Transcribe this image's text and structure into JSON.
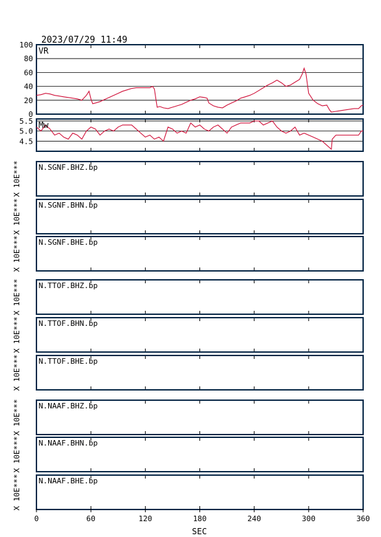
{
  "header": {
    "timestamp": "2023/07/29  11:49"
  },
  "colors": {
    "frame": "#0c2b4a",
    "trace": "#d0143c",
    "grid": "#000000"
  },
  "chart_data": [
    {
      "type": "line",
      "label": "VR",
      "ylim": [
        0,
        100
      ],
      "yticks": [
        0,
        20,
        40,
        60,
        80,
        100
      ],
      "grid": true,
      "x": [
        0,
        5,
        10,
        15,
        20,
        25,
        30,
        35,
        40,
        45,
        50,
        55,
        58,
        60,
        62,
        65,
        70,
        75,
        80,
        85,
        90,
        95,
        100,
        105,
        110,
        115,
        120,
        125,
        128,
        130,
        133,
        136,
        140,
        145,
        150,
        155,
        160,
        165,
        170,
        175,
        180,
        185,
        188,
        190,
        195,
        200,
        205,
        210,
        215,
        220,
        225,
        230,
        235,
        240,
        245,
        250,
        255,
        260,
        265,
        270,
        275,
        280,
        285,
        290,
        293,
        295,
        297,
        300,
        305,
        310,
        315,
        320,
        323,
        325,
        330,
        335,
        340,
        345,
        350,
        355,
        358,
        360
      ],
      "values": [
        27,
        28,
        30,
        29,
        27,
        26,
        25,
        24,
        23,
        22,
        20,
        27,
        33,
        22,
        15,
        16,
        18,
        21,
        24,
        27,
        30,
        33,
        35,
        37,
        38,
        38,
        38,
        38,
        40,
        36,
        10,
        11,
        9,
        8,
        10,
        12,
        14,
        17,
        20,
        22,
        25,
        24,
        23,
        16,
        12,
        10,
        9,
        13,
        16,
        19,
        23,
        25,
        27,
        30,
        34,
        38,
        42,
        45,
        49,
        45,
        40,
        42,
        46,
        50,
        58,
        66,
        58,
        30,
        20,
        15,
        12,
        13,
        6,
        3,
        4,
        5,
        6,
        7,
        8,
        8,
        12,
        13
      ]
    },
    {
      "type": "line",
      "label": "Mw",
      "ylim": [
        4.0,
        5.6
      ],
      "yticks": [
        4.5,
        5.0,
        5.5
      ],
      "grid": true,
      "x": [
        0,
        5,
        10,
        15,
        20,
        25,
        30,
        35,
        40,
        45,
        50,
        55,
        60,
        65,
        70,
        75,
        80,
        85,
        90,
        95,
        100,
        105,
        110,
        115,
        120,
        125,
        130,
        135,
        140,
        145,
        150,
        155,
        160,
        165,
        170,
        175,
        180,
        185,
        190,
        195,
        200,
        205,
        210,
        215,
        220,
        225,
        230,
        235,
        240,
        245,
        250,
        255,
        260,
        265,
        270,
        275,
        280,
        285,
        290,
        295,
        300,
        305,
        310,
        315,
        320,
        325,
        326,
        330,
        335,
        340,
        345,
        350,
        355,
        358,
        360
      ],
      "values": [
        5.2,
        5.0,
        5.3,
        5.1,
        4.8,
        4.9,
        4.7,
        4.6,
        4.9,
        4.8,
        4.6,
        5.0,
        5.2,
        5.1,
        4.8,
        5.0,
        5.1,
        5.0,
        5.2,
        5.3,
        5.3,
        5.3,
        5.1,
        4.9,
        4.7,
        4.8,
        4.6,
        4.7,
        4.5,
        5.2,
        5.1,
        4.9,
        5.0,
        4.9,
        5.4,
        5.2,
        5.3,
        5.1,
        5.0,
        5.2,
        5.3,
        5.1,
        4.9,
        5.2,
        5.3,
        5.4,
        5.4,
        5.4,
        5.5,
        5.5,
        5.3,
        5.4,
        5.5,
        5.2,
        5.0,
        4.9,
        5.0,
        5.2,
        4.8,
        4.9,
        4.8,
        4.7,
        4.6,
        4.5,
        4.3,
        4.1,
        4.6,
        4.8,
        4.8,
        4.8,
        4.8,
        4.8,
        4.8,
        5.0,
        5.0
      ]
    }
  ],
  "station_panels": [
    {
      "label": "N.SGNF.BHZ.bp",
      "ylabel": "X 10E***"
    },
    {
      "label": "N.SGNF.BHN.bp",
      "ylabel": "X 10E***"
    },
    {
      "label": "N.SGNF.BHE.bp",
      "ylabel": "X 10E***"
    },
    {
      "label": "N.TTOF.BHZ.bp",
      "ylabel": "X 10E***"
    },
    {
      "label": "N.TTOF.BHN.bp",
      "ylabel": "X 10E***"
    },
    {
      "label": "N.TTOF.BHE.bp",
      "ylabel": "X 10E***"
    },
    {
      "label": "N.NAAF.BHZ.bp",
      "ylabel": "X 10E***"
    },
    {
      "label": "N.NAAF.BHN.bp",
      "ylabel": "X 10E***"
    },
    {
      "label": "N.NAAF.BHE.bp",
      "ylabel": "X 10E***"
    }
  ],
  "x_axis": {
    "label": "SEC",
    "xlim": [
      0,
      360
    ],
    "ticks": [
      "0",
      "60",
      "120",
      "180",
      "240",
      "300",
      "360"
    ]
  }
}
